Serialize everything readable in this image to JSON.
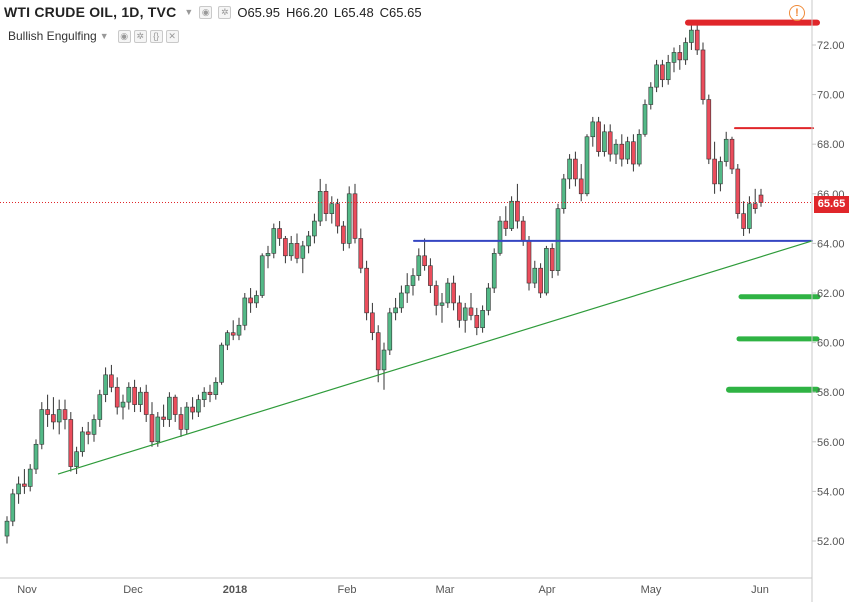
{
  "legend": {
    "symbol": "WTI CRUDE OIL, 1D, TVC",
    "open": "O65.95",
    "high": "H66.20",
    "low": "L65.48",
    "close": "C65.65"
  },
  "indicator": {
    "name": "Bullish Engulfing"
  },
  "icons": {
    "alert": "alert-icon",
    "eye": "eye-icon",
    "settings": "gear-icon",
    "source": "braces-icon",
    "close": "close-icon"
  },
  "last_price_label": "65.65",
  "colors": {
    "up": "#53b987",
    "down": "#eb4d5c",
    "wick": "#333333",
    "resistance": "#e0262a",
    "support_h": "#3546c2",
    "trendline": "#2e9b3a",
    "targets": "#2fb344",
    "last_price": "#e0262a"
  },
  "chart_data": {
    "type": "candlestick",
    "title": "WTI CRUDE OIL, 1D, TVC",
    "ylim": [
      51,
      74
    ],
    "y_ticks": [
      "52.00",
      "54.00",
      "56.00",
      "58.00",
      "60.00",
      "62.00",
      "64.00",
      "66.00",
      "68.00",
      "70.00",
      "72.00"
    ],
    "x_labels": [
      "Nov",
      "Dec",
      "2018",
      "Feb",
      "Mar",
      "Apr",
      "May",
      "Jun"
    ],
    "grid": false,
    "last_price": 65.65,
    "candles": [
      [
        52.2,
        53.0,
        51.9,
        52.8
      ],
      [
        52.8,
        54.1,
        52.6,
        53.9
      ],
      [
        53.9,
        54.6,
        53.5,
        54.3
      ],
      [
        54.3,
        54.9,
        53.9,
        54.2
      ],
      [
        54.2,
        55.1,
        54.0,
        54.9
      ],
      [
        54.9,
        56.1,
        54.7,
        55.9
      ],
      [
        55.9,
        57.6,
        55.7,
        57.3
      ],
      [
        57.3,
        57.9,
        56.6,
        57.1
      ],
      [
        57.1,
        57.8,
        56.5,
        56.8
      ],
      [
        56.8,
        57.7,
        56.3,
        57.3
      ],
      [
        57.3,
        57.7,
        56.5,
        56.9
      ],
      [
        56.9,
        57.2,
        54.8,
        55.0
      ],
      [
        55.0,
        55.8,
        54.7,
        55.6
      ],
      [
        55.6,
        56.6,
        55.4,
        56.4
      ],
      [
        56.4,
        56.8,
        55.9,
        56.3
      ],
      [
        56.3,
        57.1,
        56.0,
        56.9
      ],
      [
        56.9,
        58.1,
        56.6,
        57.9
      ],
      [
        57.9,
        59.0,
        57.6,
        58.7
      ],
      [
        58.7,
        59.1,
        58.0,
        58.2
      ],
      [
        58.2,
        58.6,
        57.1,
        57.4
      ],
      [
        57.4,
        57.9,
        56.9,
        57.6
      ],
      [
        57.6,
        58.4,
        57.3,
        58.2
      ],
      [
        58.2,
        58.5,
        57.2,
        57.5
      ],
      [
        57.5,
        58.2,
        57.2,
        58.0
      ],
      [
        58.0,
        58.3,
        56.8,
        57.1
      ],
      [
        57.1,
        57.6,
        55.8,
        56.0
      ],
      [
        56.0,
        57.2,
        55.8,
        57.0
      ],
      [
        57.0,
        57.5,
        56.6,
        56.9
      ],
      [
        56.9,
        58.0,
        56.6,
        57.8
      ],
      [
        57.8,
        57.9,
        56.8,
        57.1
      ],
      [
        57.1,
        57.4,
        56.2,
        56.5
      ],
      [
        56.5,
        57.6,
        56.3,
        57.4
      ],
      [
        57.4,
        57.8,
        56.9,
        57.2
      ],
      [
        57.2,
        57.9,
        57.0,
        57.7
      ],
      [
        57.7,
        58.2,
        57.4,
        58.0
      ],
      [
        58.0,
        58.3,
        57.6,
        57.9
      ],
      [
        57.9,
        58.6,
        57.7,
        58.4
      ],
      [
        58.4,
        60.0,
        58.3,
        59.9
      ],
      [
        59.9,
        60.5,
        59.7,
        60.4
      ],
      [
        60.4,
        60.9,
        60.1,
        60.3
      ],
      [
        60.3,
        61.0,
        60.1,
        60.7
      ],
      [
        60.7,
        62.0,
        60.5,
        61.8
      ],
      [
        61.8,
        62.2,
        61.2,
        61.6
      ],
      [
        61.6,
        62.1,
        61.4,
        61.9
      ],
      [
        61.9,
        63.6,
        61.8,
        63.5
      ],
      [
        63.5,
        63.9,
        63.0,
        63.6
      ],
      [
        63.6,
        64.8,
        63.4,
        64.6
      ],
      [
        64.6,
        64.9,
        63.9,
        64.2
      ],
      [
        64.2,
        64.3,
        63.2,
        63.5
      ],
      [
        63.5,
        64.3,
        63.3,
        64.0
      ],
      [
        64.0,
        64.4,
        63.2,
        63.4
      ],
      [
        63.4,
        64.1,
        62.8,
        63.9
      ],
      [
        63.9,
        64.5,
        63.6,
        64.3
      ],
      [
        64.3,
        65.2,
        64.0,
        64.9
      ],
      [
        64.9,
        66.6,
        64.7,
        66.1
      ],
      [
        66.1,
        66.4,
        64.9,
        65.2
      ],
      [
        65.2,
        65.9,
        64.8,
        65.6
      ],
      [
        65.6,
        65.8,
        64.4,
        64.7
      ],
      [
        64.7,
        64.9,
        63.7,
        64.0
      ],
      [
        64.0,
        66.3,
        63.8,
        66.0
      ],
      [
        66.0,
        66.4,
        64.0,
        64.2
      ],
      [
        64.2,
        64.6,
        62.8,
        63.0
      ],
      [
        63.0,
        63.3,
        60.9,
        61.2
      ],
      [
        61.2,
        61.6,
        60.1,
        60.4
      ],
      [
        60.4,
        60.7,
        58.4,
        58.9
      ],
      [
        58.9,
        60.0,
        58.1,
        59.7
      ],
      [
        59.7,
        61.4,
        59.5,
        61.2
      ],
      [
        61.2,
        61.8,
        60.9,
        61.4
      ],
      [
        61.4,
        62.3,
        61.2,
        62.0
      ],
      [
        62.0,
        62.8,
        61.6,
        62.3
      ],
      [
        62.3,
        63.0,
        61.9,
        62.7
      ],
      [
        62.7,
        63.8,
        62.5,
        63.5
      ],
      [
        63.5,
        64.2,
        62.9,
        63.1
      ],
      [
        63.1,
        63.4,
        62.0,
        62.3
      ],
      [
        62.3,
        62.5,
        61.1,
        61.5
      ],
      [
        61.5,
        62.0,
        60.8,
        61.6
      ],
      [
        61.6,
        62.6,
        61.4,
        62.4
      ],
      [
        62.4,
        62.7,
        61.3,
        61.6
      ],
      [
        61.6,
        61.9,
        60.6,
        60.9
      ],
      [
        60.9,
        61.6,
        60.4,
        61.4
      ],
      [
        61.4,
        62.0,
        60.9,
        61.1
      ],
      [
        61.1,
        61.4,
        60.3,
        60.6
      ],
      [
        60.6,
        61.5,
        60.4,
        61.3
      ],
      [
        61.3,
        62.4,
        61.1,
        62.2
      ],
      [
        62.2,
        63.8,
        62.0,
        63.6
      ],
      [
        63.6,
        65.1,
        63.5,
        64.9
      ],
      [
        64.9,
        65.5,
        64.3,
        64.6
      ],
      [
        64.6,
        65.9,
        64.5,
        65.7
      ],
      [
        65.7,
        66.4,
        64.6,
        64.9
      ],
      [
        64.9,
        65.1,
        63.9,
        64.1
      ],
      [
        64.1,
        64.3,
        62.1,
        62.4
      ],
      [
        62.4,
        63.3,
        62.2,
        63.0
      ],
      [
        63.0,
        63.2,
        61.8,
        62.0
      ],
      [
        62.0,
        63.9,
        61.9,
        63.8
      ],
      [
        63.8,
        64.0,
        62.6,
        62.9
      ],
      [
        62.9,
        65.6,
        62.7,
        65.4
      ],
      [
        65.4,
        66.8,
        65.2,
        66.6
      ],
      [
        66.6,
        67.6,
        66.2,
        67.4
      ],
      [
        67.4,
        67.7,
        66.3,
        66.6
      ],
      [
        66.6,
        67.2,
        65.7,
        66.0
      ],
      [
        66.0,
        68.4,
        65.9,
        68.3
      ],
      [
        68.3,
        69.1,
        67.9,
        68.9
      ],
      [
        68.9,
        69.1,
        67.5,
        67.7
      ],
      [
        67.7,
        68.8,
        67.5,
        68.5
      ],
      [
        68.5,
        68.8,
        67.3,
        67.6
      ],
      [
        67.6,
        68.2,
        67.2,
        68.0
      ],
      [
        68.0,
        68.4,
        67.1,
        67.4
      ],
      [
        67.4,
        68.3,
        67.2,
        68.1
      ],
      [
        68.1,
        68.4,
        66.9,
        67.2
      ],
      [
        67.2,
        68.6,
        67.1,
        68.4
      ],
      [
        68.4,
        69.8,
        68.3,
        69.6
      ],
      [
        69.6,
        70.5,
        69.4,
        70.3
      ],
      [
        70.3,
        71.4,
        70.1,
        71.2
      ],
      [
        71.2,
        71.4,
        70.3,
        70.6
      ],
      [
        70.6,
        71.6,
        70.4,
        71.3
      ],
      [
        71.3,
        71.9,
        70.9,
        71.7
      ],
      [
        71.7,
        72.0,
        71.0,
        71.4
      ],
      [
        71.4,
        72.3,
        71.2,
        72.1
      ],
      [
        72.1,
        72.9,
        71.8,
        72.6
      ],
      [
        72.6,
        72.8,
        71.6,
        71.8
      ],
      [
        71.8,
        72.1,
        69.6,
        69.8
      ],
      [
        69.8,
        70.0,
        67.2,
        67.4
      ],
      [
        67.4,
        68.1,
        66.0,
        66.4
      ],
      [
        66.4,
        67.5,
        66.1,
        67.3
      ],
      [
        67.3,
        68.5,
        67.1,
        68.2
      ],
      [
        68.2,
        68.3,
        66.8,
        67.0
      ],
      [
        67.0,
        67.2,
        65.0,
        65.2
      ],
      [
        65.2,
        65.7,
        64.3,
        64.6
      ],
      [
        64.6,
        65.9,
        64.4,
        65.6
      ],
      [
        65.6,
        66.2,
        65.2,
        65.4
      ],
      [
        65.95,
        66.2,
        65.48,
        65.65
      ]
    ],
    "annotations": [
      {
        "type": "horizontal-segment",
        "name": "resistance-72.9",
        "price": 72.9,
        "color": "#e0262a"
      },
      {
        "type": "horizontal-segment",
        "name": "resistance-68.65",
        "price": 68.65,
        "color": "#e0262a"
      },
      {
        "type": "horizontal-segment",
        "name": "support-64.1",
        "price": 64.1,
        "color": "#3546c2"
      },
      {
        "type": "trendline",
        "name": "rising-trendline",
        "from_price": 54.7,
        "to_price": 64.1,
        "color": "#2e9b3a"
      },
      {
        "type": "horizontal-segment",
        "name": "target-61.8",
        "price": 61.85,
        "color": "#2fb344"
      },
      {
        "type": "horizontal-segment",
        "name": "target-60.1",
        "price": 60.15,
        "color": "#2fb344"
      },
      {
        "type": "horizontal-segment",
        "name": "target-58.1",
        "price": 58.1,
        "color": "#2fb344"
      }
    ]
  }
}
